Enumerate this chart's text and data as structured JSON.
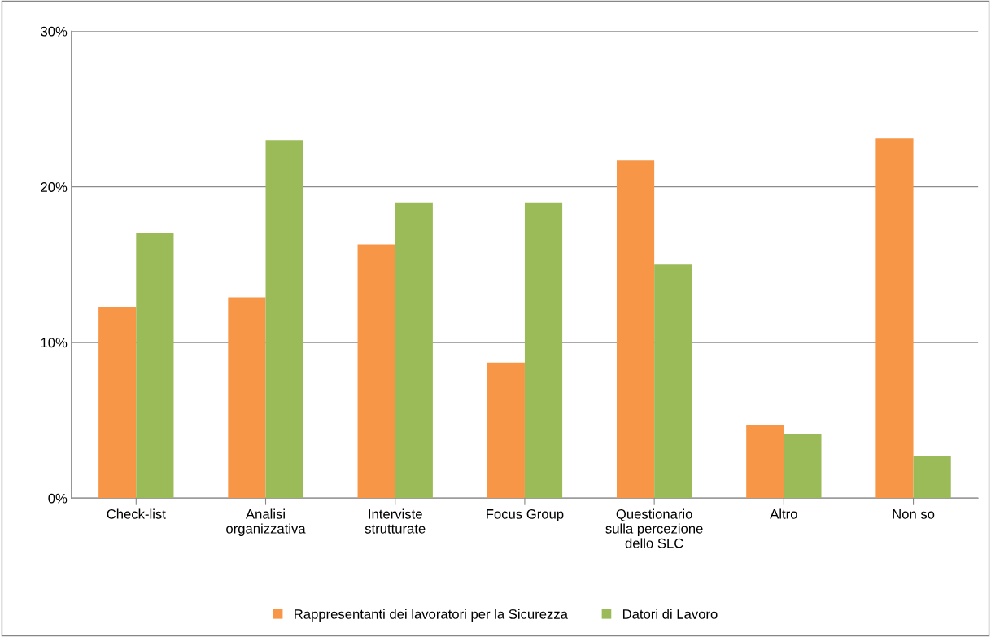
{
  "chart_data": {
    "type": "bar",
    "categories": [
      "Check-list",
      "Analisi\norganizzativa",
      "Interviste\nstrutturate",
      "Focus Group",
      "Questionario\nsulla percezione\ndello SLC",
      "Altro",
      "Non so"
    ],
    "series": [
      {
        "name": "Rappresentanti dei lavoratori per la Sicurezza",
        "color": "#f79646",
        "values": [
          12.3,
          12.9,
          16.3,
          8.7,
          21.7,
          4.7,
          23.1
        ]
      },
      {
        "name": "Datori di Lavoro",
        "color": "#9bbb59",
        "values": [
          17.0,
          23.0,
          19.0,
          19.0,
          15.0,
          4.1,
          2.7
        ]
      }
    ],
    "ylim": [
      0,
      30
    ],
    "yticks": [
      {
        "value": 0,
        "label": "0%"
      },
      {
        "value": 10,
        "label": "10%"
      },
      {
        "value": 20,
        "label": "20%"
      },
      {
        "value": 30,
        "label": "30%"
      }
    ],
    "grid": "y",
    "legend": "bottom"
  }
}
